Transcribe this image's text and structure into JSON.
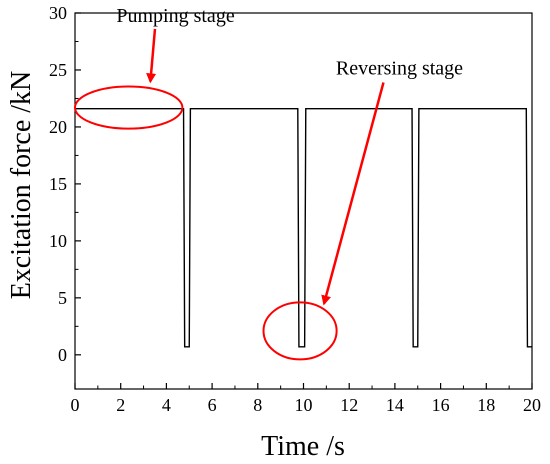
{
  "chart_data": {
    "type": "line",
    "xlabel": "Time /s",
    "ylabel": "Excitation force /kN",
    "xlim": [
      0,
      20
    ],
    "ylim": [
      -3,
      30
    ],
    "x_ticks": [
      0,
      2,
      4,
      6,
      8,
      10,
      12,
      14,
      16,
      18,
      20
    ],
    "y_ticks": [
      0,
      5,
      10,
      15,
      20,
      25,
      30
    ],
    "grid": false,
    "series": [
      {
        "x": [
          0,
          4.75,
          4.8,
          5.0,
          5.05,
          9.75,
          9.8,
          10.05,
          10.1,
          14.75,
          14.8,
          15.0,
          15.05,
          19.75,
          19.8,
          20.0
        ],
        "y": [
          21.6,
          21.6,
          0.7,
          0.7,
          21.6,
          21.6,
          0.7,
          0.7,
          21.6,
          21.6,
          0.7,
          0.7,
          21.6,
          21.6,
          0.7,
          0.7
        ],
        "color": "#000000"
      }
    ],
    "annotations": [
      {
        "text": "Pumping stage",
        "label_at": [
          4.4,
          29.2
        ],
        "arrow_from": [
          3.5,
          28.6
        ],
        "arrow_to": [
          3.3,
          24.0
        ],
        "ellipse_center": [
          2.35,
          21.7
        ],
        "ellipse_radii": [
          2.35,
          1.85
        ],
        "color": "#ff0000"
      },
      {
        "text": "Reversing stage",
        "label_at": [
          14.2,
          24.6
        ],
        "arrow_from": [
          13.5,
          23.9
        ],
        "arrow_to": [
          10.9,
          4.5
        ],
        "ellipse_center": [
          9.85,
          2.1
        ],
        "ellipse_radii": [
          1.6,
          2.5
        ],
        "color": "#ff0000"
      }
    ]
  }
}
